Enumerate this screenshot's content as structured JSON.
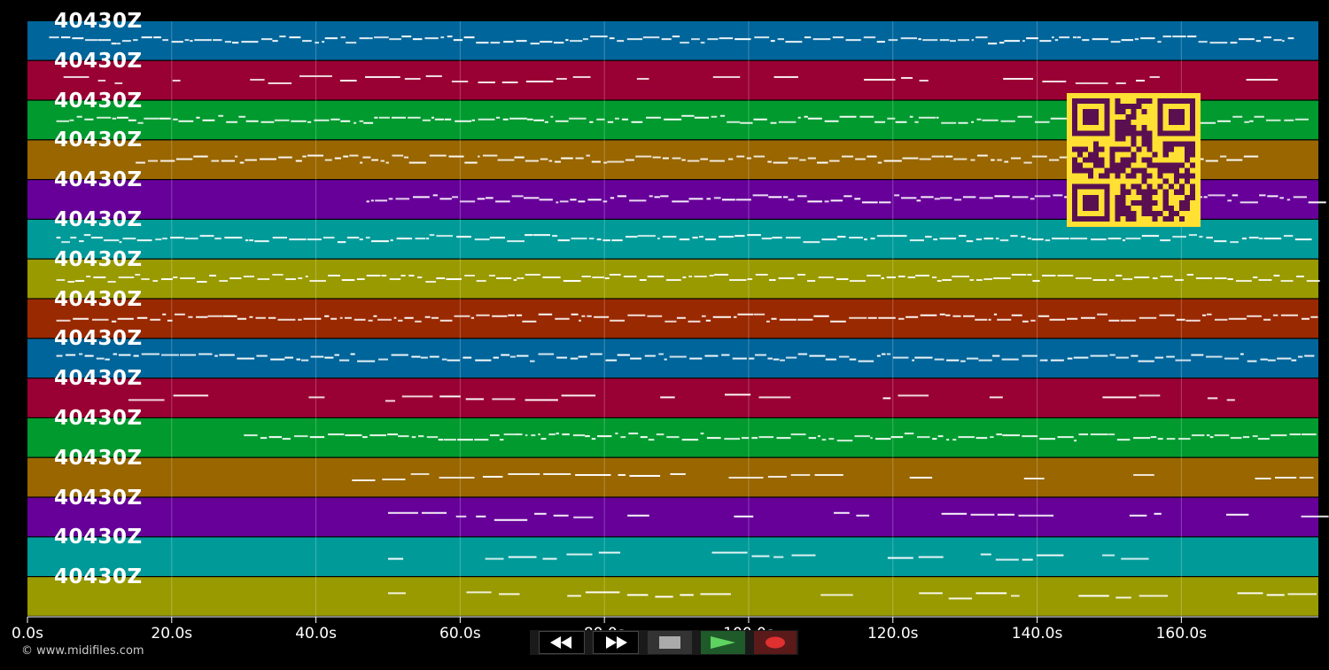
{
  "app": {
    "copyright": "© www.midifiles.com"
  },
  "tracks": [
    {
      "label": "40430Z",
      "color": "#00659a"
    },
    {
      "label": "40430Z",
      "color": "#990033"
    },
    {
      "label": "40430Z",
      "color": "#009a2e"
    },
    {
      "label": "40430Z",
      "color": "#996600"
    },
    {
      "label": "40430Z",
      "color": "#660099"
    },
    {
      "label": "40430Z",
      "color": "#009a99"
    },
    {
      "label": "40430Z",
      "color": "#999a00"
    },
    {
      "label": "40430Z",
      "color": "#992900"
    },
    {
      "label": "40430Z",
      "color": "#00659a"
    },
    {
      "label": "40430Z",
      "color": "#990033"
    },
    {
      "label": "40430Z",
      "color": "#009a2e"
    },
    {
      "label": "40430Z",
      "color": "#996600"
    },
    {
      "label": "40430Z",
      "color": "#660099"
    },
    {
      "label": "40430Z",
      "color": "#009a99"
    },
    {
      "label": "40430Z",
      "color": "#999a00"
    }
  ],
  "timeline": {
    "ticks": [
      "0.0s",
      "20.0s",
      "40.0s",
      "60.0s",
      "80.0s",
      "100.0s",
      "120.0s",
      "140.0s",
      "160.0s"
    ],
    "tick_seconds": [
      0,
      20,
      40,
      60,
      80,
      100,
      120,
      140,
      160
    ],
    "duration_seconds": 179
  },
  "transport": {
    "rewind_icon": "rewind-icon",
    "forward_icon": "fast-forward-icon",
    "stop_icon": "stop-icon",
    "play_icon": "play-icon",
    "record_icon": "record-icon"
  },
  "qr": {
    "fg": "#ffe033",
    "bg": "#5a1050"
  }
}
